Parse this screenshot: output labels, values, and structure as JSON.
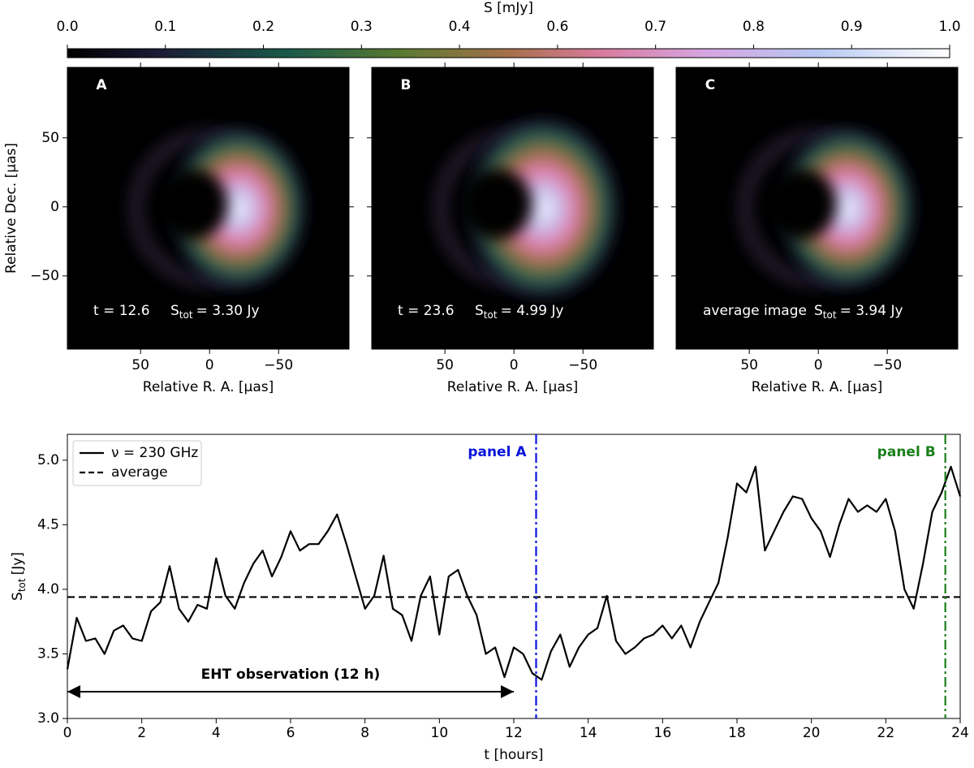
{
  "chart_data": [
    {
      "type": "colorbar",
      "label": "S [mJy]",
      "ticks": [
        {
          "value": 0,
          "label": "0.0"
        },
        0.1,
        0.2,
        0.3,
        0.4,
        0.6,
        0.7,
        0.8,
        0.9,
        {
          "value": 1,
          "label": "1.0"
        }
      ]
    },
    {
      "type": "image",
      "label": "A",
      "time_label": "t = 12.6",
      "flux_symbol": "S",
      "flux_sub": "tot",
      "flux_value": "= 3.30 Jy",
      "xlabel": "Relative R. A. [µas]",
      "ylabel": "Relative Dec. [µas]",
      "xlim": [
        103,
        -101
      ],
      "ylim": [
        -103,
        101
      ],
      "xticks": [
        50,
        0,
        {
          "value": -50,
          "label": "−50"
        }
      ],
      "yticks": [
        {
          "value": -50,
          "label": "−50"
        },
        0,
        50
      ]
    },
    {
      "type": "image",
      "label": "B",
      "time_label": "t = 23.6",
      "flux_symbol": "S",
      "flux_sub": "tot",
      "flux_value": "= 4.99 Jy",
      "xlabel": "Relative R. A. [µas]",
      "xlim": [
        103,
        -101
      ],
      "ylim": [
        -103,
        101
      ],
      "xticks": [
        50,
        0,
        {
          "value": -50,
          "label": "−50"
        }
      ],
      "yticks": [
        -50,
        0,
        50
      ]
    },
    {
      "type": "image",
      "label": "C",
      "time_label": "average image",
      "flux_symbol": "S",
      "flux_sub": "tot",
      "flux_value": "= 3.94 Jy",
      "xlabel": "Relative R. A. [µas]",
      "xlim": [
        103,
        -101
      ],
      "ylim": [
        -103,
        101
      ],
      "xticks": [
        50,
        0,
        {
          "value": -50,
          "label": "−50"
        }
      ],
      "yticks": [
        -50,
        0,
        50
      ]
    },
    {
      "type": "line",
      "xlabel": "t [hours]",
      "ylabel": {
        "symbol": "S",
        "sub": "tot",
        "unit": "[Jy]"
      },
      "xlim": [
        0,
        24
      ],
      "ylim": [
        3.0,
        5.2
      ],
      "xticks": [
        0,
        2,
        4,
        6,
        8,
        10,
        12,
        14,
        16,
        18,
        20,
        22,
        24
      ],
      "yticks": [
        {
          "value": 3,
          "label": "3.0"
        },
        3.5,
        {
          "value": 4,
          "label": "4.0"
        },
        4.5,
        {
          "value": 5,
          "label": "5.0"
        }
      ],
      "x": [
        0,
        0.25,
        0.5,
        0.75,
        1,
        1.25,
        1.5,
        1.75,
        2,
        2.25,
        2.5,
        2.75,
        3,
        3.25,
        3.5,
        3.75,
        4,
        4.25,
        4.5,
        4.75,
        5,
        5.25,
        5.5,
        5.75,
        6,
        6.25,
        6.5,
        6.75,
        7,
        7.25,
        7.5,
        7.75,
        8,
        8.25,
        8.5,
        8.75,
        9,
        9.25,
        9.5,
        9.75,
        10,
        10.25,
        10.5,
        10.75,
        11,
        11.25,
        11.5,
        11.75,
        12,
        12.25,
        12.5,
        12.75,
        13,
        13.25,
        13.5,
        13.75,
        14,
        14.25,
        14.5,
        14.75,
        15,
        15.25,
        15.5,
        15.75,
        16,
        16.25,
        16.5,
        16.75,
        17,
        17.25,
        17.5,
        17.75,
        18,
        18.25,
        18.5,
        18.75,
        19,
        19.25,
        19.5,
        19.75,
        20,
        20.25,
        20.5,
        20.75,
        21,
        21.25,
        21.5,
        21.75,
        22,
        22.25,
        22.5,
        22.75,
        23,
        23.25,
        23.5,
        23.75,
        24
      ],
      "series": [
        {
          "name": "ν = 230 GHz",
          "color": "#000000",
          "values": [
            3.38,
            3.78,
            3.6,
            3.62,
            3.5,
            3.68,
            3.72,
            3.62,
            3.6,
            3.83,
            3.9,
            4.18,
            3.85,
            3.75,
            3.88,
            3.85,
            4.24,
            3.95,
            3.85,
            4.05,
            4.2,
            4.3,
            4.1,
            4.25,
            4.45,
            4.3,
            4.35,
            4.35,
            4.45,
            4.58,
            4.35,
            4.1,
            3.85,
            3.95,
            4.26,
            3.85,
            3.8,
            3.6,
            3.95,
            4.1,
            3.65,
            4.1,
            4.15,
            3.95,
            3.8,
            3.5,
            3.55,
            3.32,
            3.55,
            3.5,
            3.35,
            3.3,
            3.52,
            3.65,
            3.4,
            3.55,
            3.65,
            3.7,
            3.95,
            3.6,
            3.5,
            3.55,
            3.62,
            3.65,
            3.72,
            3.62,
            3.72,
            3.55,
            3.75,
            3.9,
            4.05,
            4.4,
            4.82,
            4.75,
            4.95,
            4.3,
            4.45,
            4.6,
            4.72,
            4.7,
            4.55,
            4.45,
            4.25,
            4.5,
            4.7,
            4.6,
            4.65,
            4.6,
            4.7,
            4.45,
            4.0,
            3.85,
            4.2,
            4.6,
            4.75,
            4.95,
            4.72
          ]
        }
      ],
      "average": {
        "name": "average",
        "value": 3.94,
        "color": "#000000"
      },
      "vlines": [
        {
          "x": 12.6,
          "label": "panel A",
          "color": "#0a14dc"
        },
        {
          "x": 23.6,
          "label": "panel B",
          "color": "#1a7f1a"
        }
      ],
      "span": {
        "x": [
          0,
          12
        ],
        "label": "EHT observation (12 h)"
      },
      "legend": "upper left"
    }
  ]
}
